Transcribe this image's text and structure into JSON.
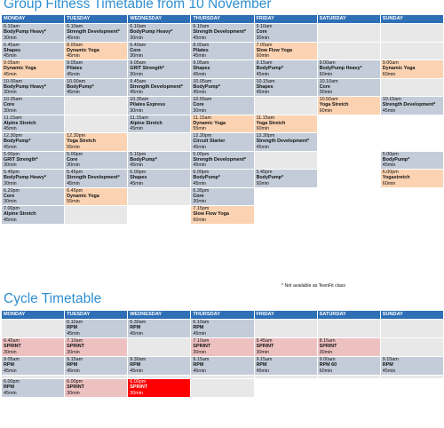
{
  "title1": "Group Fitness Timetable from 10 November",
  "title2": "Cycle Timetable",
  "note": "* Not available as TeenFit class",
  "days": [
    "MONDAY",
    "TUESDAY",
    "WEDNESDAY",
    "THURSDAY",
    "FRIDAY",
    "SATURDAY",
    "SUNDAY"
  ],
  "colors": {
    "header": "#2e6fb5",
    "grey": "#c3ccd8",
    "orange": "#fbd3b2",
    "empty": "#e8e8e8",
    "pink": "#eec1c1",
    "red": "#ff0000",
    "title": "#2f8fd0"
  },
  "group": [
    {
      "cells": [
        {
          "c": "g",
          "t": "6.10am",
          "n": "BodyPump Heavy*",
          "d": "30min"
        },
        {
          "c": "g",
          "t": "6.10am",
          "n": "Strength Development*",
          "d": "45min"
        },
        {
          "c": "g",
          "t": "6.10am",
          "n": "BodyPump Heavy*",
          "d": "30min"
        },
        {
          "c": "g",
          "t": "6.10am",
          "n": "Strength Development*",
          "d": "45min"
        },
        {
          "c": "g",
          "t": "6.10am",
          "n": "Core",
          "d": "30min"
        },
        {
          "c": "e"
        },
        {
          "c": "e"
        }
      ]
    },
    {
      "cells": [
        {
          "c": "g",
          "t": "6.45am",
          "n": "Shapes",
          "d": "45min"
        },
        {
          "c": "o",
          "t": "8.00am",
          "n": "Dynamic Yoga",
          "d": "45min"
        },
        {
          "c": "g",
          "t": "6.40am",
          "n": "Core",
          "d": "30min"
        },
        {
          "c": "g",
          "t": "8.00am",
          "n": "Pilates",
          "d": "45min"
        },
        {
          "c": "o",
          "t": "7.00am",
          "n": "Slow Flow Yoga",
          "d": "60min"
        },
        {
          "c": "e"
        },
        {
          "c": "e"
        }
      ]
    },
    {
      "cells": [
        {
          "c": "o",
          "t": "9.05am",
          "n": "Dynamic Yoga",
          "d": "45min"
        },
        {
          "c": "g",
          "t": "9.05am",
          "n": "Pilates",
          "d": "45min"
        },
        {
          "c": "g",
          "t": "9.05am",
          "n": "GRIT Strength*",
          "d": "30min"
        },
        {
          "c": "g",
          "t": "9.05am",
          "n": "Shapes",
          "d": "45min"
        },
        {
          "c": "g",
          "t": "9.15am",
          "n": "BodyPump*",
          "d": "45min"
        },
        {
          "c": "g",
          "t": "9.00am",
          "n": "BodyPump Heavy*",
          "d": "60min"
        },
        {
          "c": "o",
          "t": "9.00am",
          "n": "Dynamic Yoga",
          "d": "60min"
        }
      ]
    },
    {
      "cells": [
        {
          "c": "g",
          "t": "10.00am",
          "n": "BodyPump Heavy*",
          "d": "30min"
        },
        {
          "c": "g",
          "t": "10.00am",
          "n": "BodyPump*",
          "d": "45min"
        },
        {
          "c": "g",
          "t": "9.45am",
          "n": "Strength Development*",
          "d": "45min"
        },
        {
          "c": "g",
          "t": "10.05am",
          "n": "BodyPump*",
          "d": "45min"
        },
        {
          "c": "g",
          "t": "10.15am",
          "n": "Shapes",
          "d": "45min"
        },
        {
          "c": "g",
          "t": "10.10am",
          "n": "Core",
          "d": "30min"
        },
        {
          "c": "e"
        }
      ]
    },
    {
      "cells": [
        {
          "c": "g",
          "t": "10.35am",
          "n": "Core",
          "d": "30min"
        },
        {
          "c": "e"
        },
        {
          "c": "g",
          "t": "10.35am",
          "n": "Pilates Express",
          "d": "30min"
        },
        {
          "c": "g",
          "t": "10.55am",
          "n": "Core",
          "d": "30min"
        },
        {
          "c": "e"
        },
        {
          "c": "o",
          "t": "10.50am",
          "n": "Yoga Stretch",
          "d": "60min"
        },
        {
          "c": "g",
          "t": "10.15am",
          "n": "Strength Development*",
          "d": "45min"
        }
      ]
    },
    {
      "cells": [
        {
          "c": "g",
          "t": "11.15am",
          "n": "Alpine Stretch",
          "d": "45min"
        },
        {
          "c": "e"
        },
        {
          "c": "g",
          "t": "11.15am",
          "n": "Alpine Stretch",
          "d": "45min"
        },
        {
          "c": "o",
          "t": "11.15am",
          "n": "Dynamic Yoga",
          "d": "55min"
        },
        {
          "c": "o",
          "t": "11.15am",
          "n": "Yoga Stretch",
          "d": "60min"
        },
        {
          "c": "w"
        },
        {
          "c": "w"
        }
      ]
    },
    {
      "cells": [
        {
          "c": "g",
          "t": "12.30pm",
          "n": "BodyPump*",
          "d": "45min"
        },
        {
          "c": "o",
          "t": "12.30pm",
          "n": "Yoga Stretch",
          "d": "55min"
        },
        {
          "c": "e"
        },
        {
          "c": "g",
          "t": "12.30pm",
          "n": "Circuit Starter",
          "d": "45min"
        },
        {
          "c": "g",
          "t": "12.30pm",
          "n": "Strength Development*",
          "d": "45min"
        },
        {
          "c": "w"
        },
        {
          "c": "w"
        }
      ]
    },
    {
      "cells": [
        {
          "c": "g",
          "t": "5.00pm",
          "n": "GRIT Strength*",
          "d": "30min"
        },
        {
          "c": "g",
          "t": "5.00pm",
          "n": "Core",
          "d": "30min"
        },
        {
          "c": "g",
          "t": "5.10pm",
          "n": "BodyPump*",
          "d": "45min"
        },
        {
          "c": "g",
          "t": "5.00pm",
          "n": "Strength Development*",
          "d": "45min"
        },
        {
          "c": "e"
        },
        {
          "c": "w"
        },
        {
          "c": "g",
          "t": "5.00pm",
          "n": "BodyPump*",
          "d": "45min"
        }
      ]
    },
    {
      "cells": [
        {
          "c": "g",
          "t": "5.45pm",
          "n": "BodyPump Heavy*",
          "d": "30min"
        },
        {
          "c": "g",
          "t": "5.45pm",
          "n": "Strength Development*",
          "d": "45min"
        },
        {
          "c": "g",
          "t": "6.00pm",
          "n": "Shapes",
          "d": "45min"
        },
        {
          "c": "g",
          "t": "6.00pm",
          "n": "BodyPump*",
          "d": "45min"
        },
        {
          "c": "g",
          "t": "5.45pm",
          "n": "BodyPump*",
          "d": "60min"
        },
        {
          "c": "w"
        },
        {
          "c": "o",
          "t": "6.00pm",
          "n": "Yogastretch",
          "d": "60min"
        }
      ]
    },
    {
      "cells": [
        {
          "c": "g",
          "t": "6.20pm",
          "n": "Core",
          "d": "30min"
        },
        {
          "c": "o",
          "t": "6.45pm",
          "n": "Dynamic Yoga",
          "d": "55min"
        },
        {
          "c": "e"
        },
        {
          "c": "g",
          "t": "6.35pm",
          "n": "Core",
          "d": "30min"
        },
        {
          "c": "w"
        },
        {
          "c": "w"
        },
        {
          "c": "w"
        }
      ]
    },
    {
      "cells": [
        {
          "c": "g",
          "t": "7.00pm",
          "n": "Alpine Stretch",
          "d": "45min"
        },
        {
          "c": "e"
        },
        {
          "c": "w"
        },
        {
          "c": "o",
          "t": "7.15pm",
          "n": "Slow Flow Yoga",
          "d": "60min"
        },
        {
          "c": "w"
        },
        {
          "c": "w"
        },
        {
          "c": "w"
        }
      ]
    }
  ],
  "cycle": [
    {
      "cells": [
        {
          "c": "e"
        },
        {
          "c": "g",
          "t": "6.10am",
          "n": "RPM",
          "d": "45min"
        },
        {
          "c": "g",
          "t": "6.30am",
          "n": "RPM",
          "d": "45min"
        },
        {
          "c": "g",
          "t": "6.10am",
          "n": "RPM",
          "d": "45min"
        },
        {
          "c": "e"
        },
        {
          "c": "e"
        },
        {
          "c": "e"
        }
      ]
    },
    {
      "cells": [
        {
          "c": "p",
          "t": "6.45am",
          "n": "SPRINT",
          "d": "30min"
        },
        {
          "c": "p",
          "t": "7.10am",
          "n": "SPRINT",
          "d": "30min"
        },
        {
          "c": "e"
        },
        {
          "c": "p",
          "t": "7.10am",
          "n": "SPRINT",
          "d": "30min"
        },
        {
          "c": "p",
          "t": "6.45am",
          "n": "SPRINT",
          "d": "30min"
        },
        {
          "c": "p",
          "t": "8.15am",
          "n": "SPRINT",
          "d": "30min"
        },
        {
          "c": "e"
        }
      ]
    },
    {
      "cells": [
        {
          "c": "g",
          "t": "9.05am",
          "n": "RPM",
          "d": "45min"
        },
        {
          "c": "g",
          "t": "9.15am",
          "n": "RPM",
          "d": "45min"
        },
        {
          "c": "g",
          "t": "9.30am",
          "n": "RPM",
          "d": "45min"
        },
        {
          "c": "g",
          "t": "9.15am",
          "n": "RPM",
          "d": "45min"
        },
        {
          "c": "g",
          "t": "9.15am",
          "n": "RPM",
          "d": "45min"
        },
        {
          "c": "g",
          "t": "9.00am",
          "n": "RPM 60",
          "d": "60min"
        },
        {
          "c": "g",
          "t": "9.15am",
          "n": "RPM",
          "d": "45min"
        }
      ]
    },
    {
      "gap": true,
      "cells": [
        {
          "c": "e"
        },
        {
          "c": "e"
        },
        {
          "c": "e"
        },
        {
          "c": "e"
        },
        {
          "c": "e"
        },
        {
          "c": "e"
        },
        {
          "c": "e"
        }
      ]
    },
    {
      "cells": [
        {
          "c": "g",
          "t": "6.00pm",
          "n": "RPM",
          "d": "45min"
        },
        {
          "c": "p",
          "t": "6.00pm",
          "n": "SPRINT",
          "d": "30min"
        },
        {
          "c": "r",
          "t": "6.00pm",
          "n": "SPRINT",
          "d": "30min"
        },
        {
          "c": "e"
        },
        {
          "c": "w"
        },
        {
          "c": "w"
        },
        {
          "c": "w"
        }
      ]
    }
  ]
}
